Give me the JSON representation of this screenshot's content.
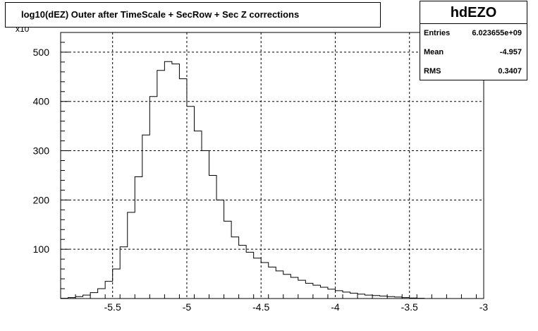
{
  "title": "log10(dEZ) Outer after TimeScale + SecRow + Sec Z corrections",
  "stats": {
    "name": "hdEZO",
    "rows": [
      {
        "label": "Entries",
        "value": "6.023655e+09"
      },
      {
        "label": "Mean",
        "value": "-4.957"
      },
      {
        "label": "RMS",
        "value": "0.3407"
      }
    ]
  },
  "chart_data": {
    "type": "bar",
    "xlim": [
      -5.85,
      -3.0
    ],
    "ylim": [
      0,
      540
    ],
    "y_multiplier_label": "x10",
    "grid": true,
    "xticks": [
      {
        "value": -5.5,
        "label": "-5.5"
      },
      {
        "value": -5.0,
        "label": "-5"
      },
      {
        "value": -4.5,
        "label": "-4.5"
      },
      {
        "value": -4.0,
        "label": "-4"
      },
      {
        "value": -3.5,
        "label": "-3.5"
      },
      {
        "value": -3.0,
        "label": "-3"
      }
    ],
    "yticks": [
      {
        "value": 100,
        "label": "100"
      },
      {
        "value": 200,
        "label": "200"
      },
      {
        "value": 300,
        "label": "300"
      },
      {
        "value": 400,
        "label": "400"
      },
      {
        "value": 500,
        "label": "500"
      }
    ],
    "bin_width": 0.05,
    "bin_start": -5.85,
    "values": [
      0.5,
      2,
      4,
      7,
      12,
      20,
      35,
      60,
      105,
      175,
      247,
      332,
      410,
      463,
      481,
      476,
      446,
      390,
      340,
      300,
      250,
      200,
      157,
      125,
      108,
      94,
      82,
      73,
      64,
      56,
      49,
      43,
      37,
      31,
      27,
      23,
      19,
      16,
      13,
      11,
      9,
      7,
      6,
      5,
      4,
      3,
      2,
      1,
      0.5,
      0,
      0,
      0,
      0,
      0,
      0,
      0,
      0
    ]
  }
}
